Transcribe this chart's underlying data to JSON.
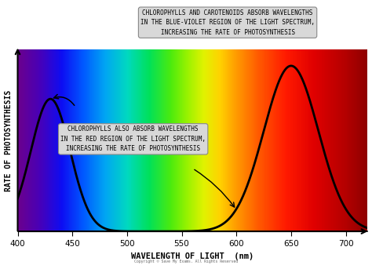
{
  "xlim": [
    400,
    720
  ],
  "ylim": [
    0,
    1.1
  ],
  "xlabel": "WAVELENGTH OF LIGHT  (nm)",
  "ylabel": "RATE OF PHOTOSYNTHESIS",
  "xticks": [
    400,
    450,
    500,
    550,
    600,
    650,
    700
  ],
  "annotation1_text": "CHLOROPHYLLS AND CAROTENOIDS ABSORB WAVELENGTHS\nIN THE BLUE-VIOLET REGION OF THE LIGHT SPECTRUM,\nINCREASING THE RATE OF PHOTOSYNTHESIS",
  "annotation2_text": "CHLOROPHYLLS ALSO ABSORB WAVELENGTHS\nIN THE RED REGION OF THE LIGHT SPECTRUM,\nINCREASING THE RATE OF PHOTOSYNTHESIS",
  "curve_color": "#000000",
  "annotation_bg_color": "#d8d8d8",
  "copyright": "Copyright © Save My Exams. All Rights Reserved",
  "spectrum_colors": [
    [
      400,
      [
        0.42,
        0.0,
        0.55
      ]
    ],
    [
      420,
      [
        0.28,
        0.0,
        0.72
      ]
    ],
    [
      440,
      [
        0.05,
        0.05,
        0.95
      ]
    ],
    [
      460,
      [
        0.0,
        0.35,
        1.0
      ]
    ],
    [
      480,
      [
        0.0,
        0.65,
        0.95
      ]
    ],
    [
      500,
      [
        0.0,
        0.85,
        0.75
      ]
    ],
    [
      520,
      [
        0.0,
        0.88,
        0.35
      ]
    ],
    [
      540,
      [
        0.3,
        0.92,
        0.05
      ]
    ],
    [
      555,
      [
        0.6,
        0.95,
        0.0
      ]
    ],
    [
      570,
      [
        0.88,
        0.95,
        0.0
      ]
    ],
    [
      585,
      [
        1.0,
        0.82,
        0.0
      ]
    ],
    [
      600,
      [
        1.0,
        0.6,
        0.0
      ]
    ],
    [
      620,
      [
        1.0,
        0.35,
        0.0
      ]
    ],
    [
      645,
      [
        1.0,
        0.1,
        0.0
      ]
    ],
    [
      670,
      [
        0.88,
        0.0,
        0.0
      ]
    ],
    [
      700,
      [
        0.7,
        0.0,
        0.0
      ]
    ],
    [
      720,
      [
        0.55,
        0.0,
        0.0
      ]
    ]
  ]
}
